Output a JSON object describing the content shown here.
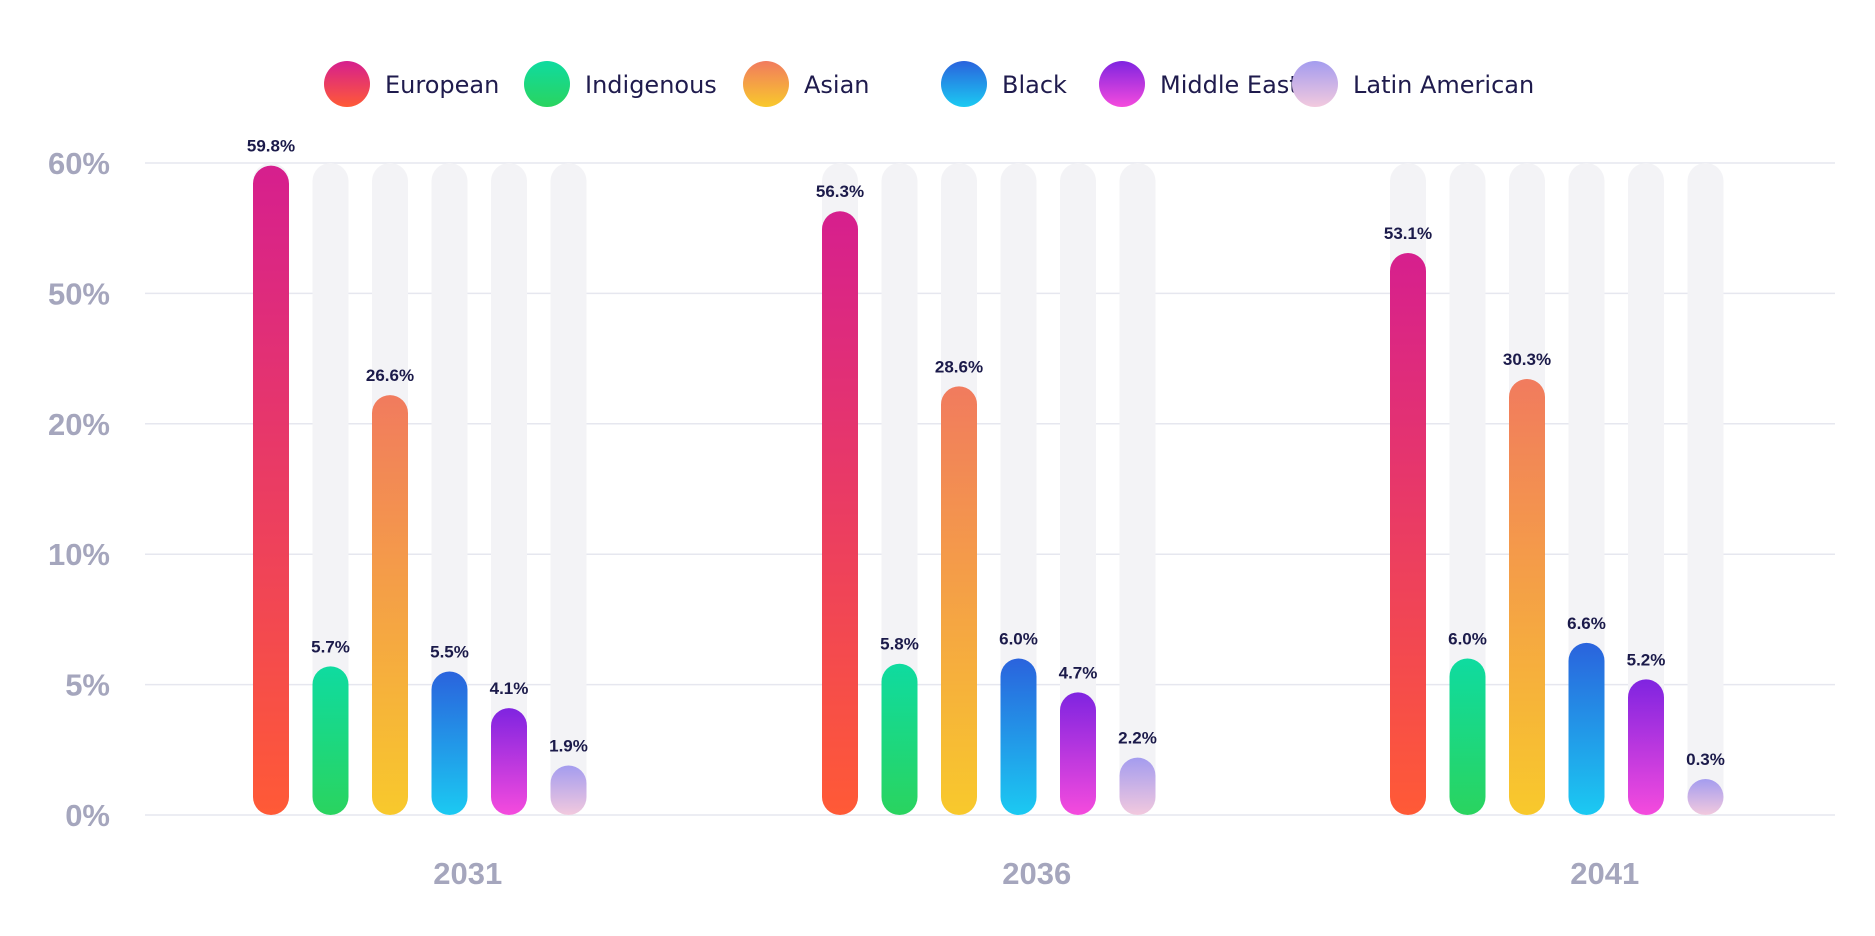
{
  "chart_data": {
    "type": "bar",
    "categories": [
      "2031",
      "2036",
      "2041"
    ],
    "y_ticks": [
      "0%",
      "5%",
      "10%",
      "20%",
      "50%",
      "60%"
    ],
    "grid": true,
    "legend_position": "top-center",
    "series": [
      {
        "name": "European",
        "values": [
          59.8,
          56.3,
          53.1
        ],
        "labels": [
          "59.8%",
          "56.3%",
          "53.1%"
        ],
        "color_top": "#d61f8e",
        "color_bottom": "#ff5a36"
      },
      {
        "name": "Indigenous",
        "values": [
          5.7,
          5.8,
          6.0
        ],
        "labels": [
          "5.7%",
          "5.8%",
          "6.0%"
        ],
        "color_top": "#0fdba0",
        "color_bottom": "#2ad45f"
      },
      {
        "name": "Asian",
        "values": [
          26.6,
          28.6,
          30.3
        ],
        "labels": [
          "26.6%",
          "28.6%",
          "30.3%"
        ],
        "color_top": "#f17b5e",
        "color_bottom": "#f8c92c"
      },
      {
        "name": "Black",
        "values": [
          5.5,
          6.0,
          6.6
        ],
        "labels": [
          "5.5%",
          "6.0%",
          "6.6%"
        ],
        "color_top": "#2a63dd",
        "color_bottom": "#1bcaf2"
      },
      {
        "name": "Middle Eastern",
        "values": [
          4.1,
          4.7,
          5.2
        ],
        "labels": [
          "4.1%",
          "4.7%",
          "5.2%"
        ],
        "color_top": "#7f24e0",
        "color_bottom": "#f54bdd"
      },
      {
        "name": "Latin American",
        "values": [
          1.9,
          2.2,
          0.3
        ],
        "labels": [
          "1.9%",
          "2.2%",
          "0.3%"
        ],
        "color_top": "#a49cef",
        "color_bottom": "#f2c9de"
      }
    ]
  }
}
